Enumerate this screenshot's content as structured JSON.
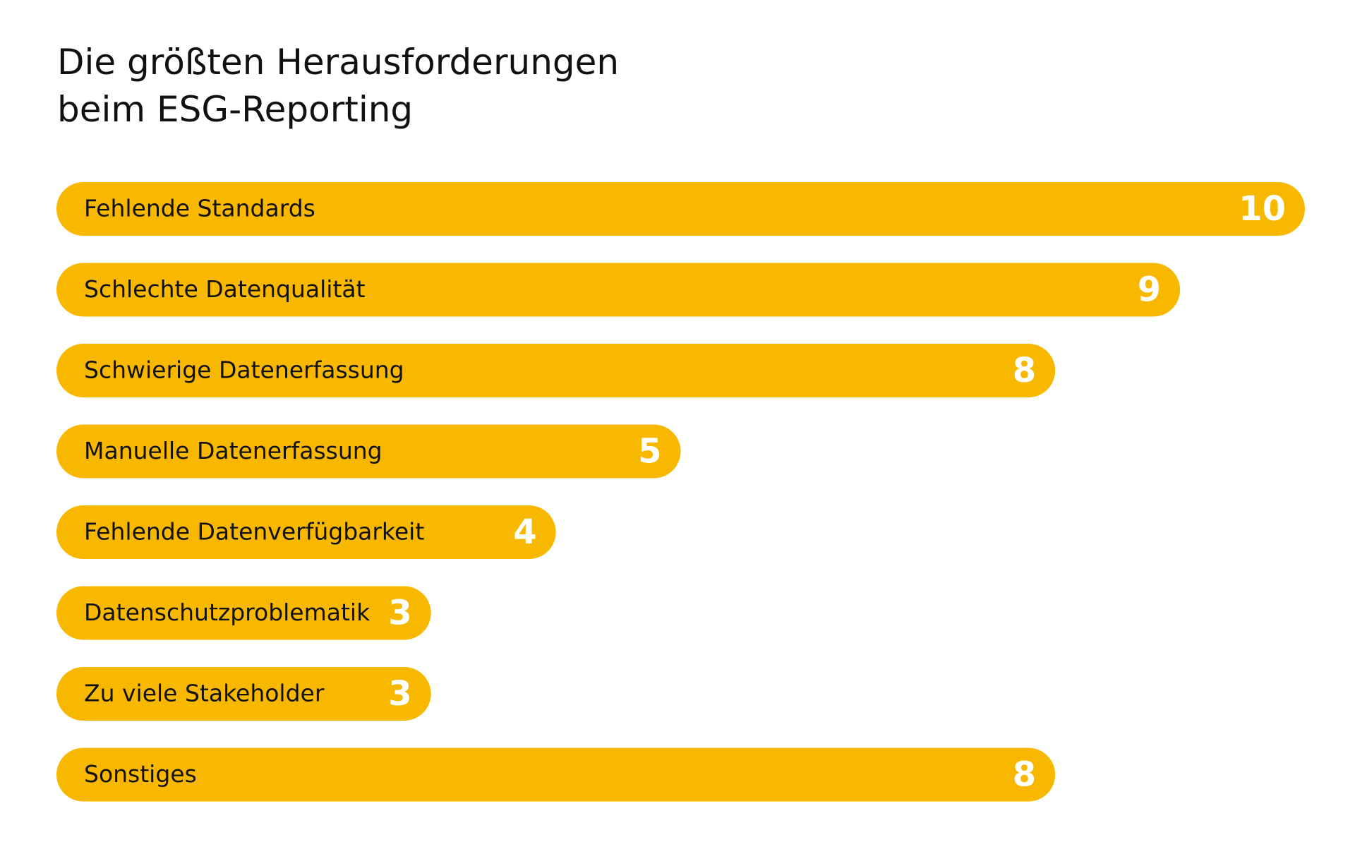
{
  "chart_data": {
    "type": "bar",
    "orientation": "horizontal",
    "title": [
      "Die größten Herausforderungen",
      "beim ESG-Reporting"
    ],
    "categories": [
      "Fehlende Standards",
      "Schlechte Datenqualität",
      "Schwierige Datenerfassung",
      "Manuelle Datenerfassung",
      "Fehlende Datenverfügbarkeit",
      "Datenschutzproblematik",
      "Zu viele Stakeholder",
      "Sonstiges"
    ],
    "values": [
      10,
      9,
      8,
      5,
      4,
      3,
      3,
      8
    ],
    "color": "#f9b800",
    "xlim": [
      0,
      10
    ]
  }
}
